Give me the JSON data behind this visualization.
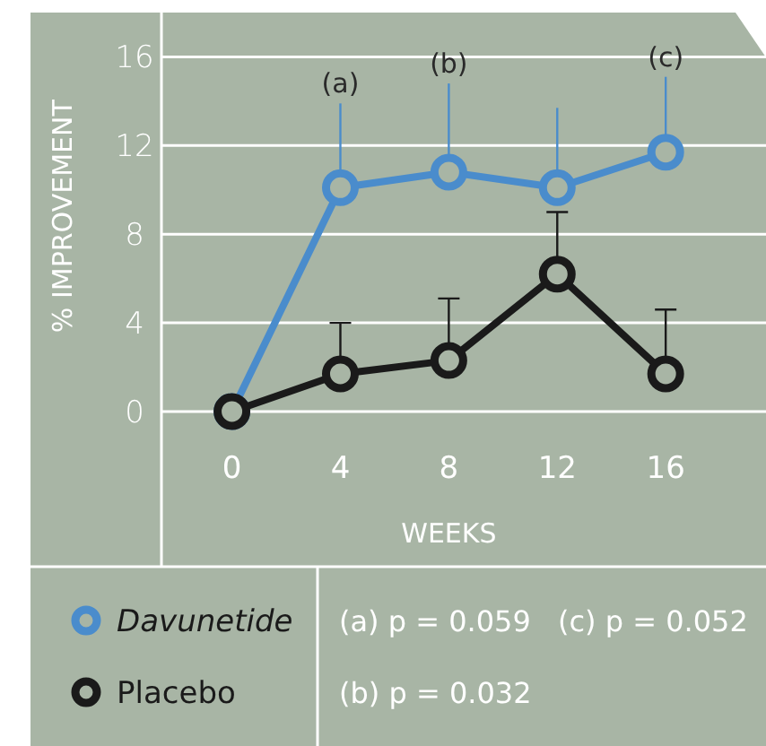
{
  "chart_data": {
    "type": "line",
    "xlabel": "WEEKS",
    "ylabel": "% IMPROVEMENT",
    "x": [
      0,
      4,
      8,
      12,
      16
    ],
    "xlim": [
      -2.6,
      19.7
    ],
    "ylim": [
      -7,
      18
    ],
    "xticks": [
      0,
      4,
      8,
      12,
      16
    ],
    "yticks": [
      0,
      4,
      8,
      12,
      16
    ],
    "grid": "y",
    "marker": "circle",
    "legend": "bottom",
    "series": [
      {
        "name": "Davunetide",
        "color": "#4a8ccc",
        "values": [
          0,
          10.1,
          10.8,
          10.1,
          11.7
        ],
        "errors": [
          null,
          [
            10.1,
            13.9
          ],
          [
            10.8,
            14.8
          ],
          [
            10.1,
            13.7
          ],
          [
            11.7,
            15.1
          ]
        ]
      },
      {
        "name": "Placebo",
        "color": "#1a1a1a",
        "values": [
          0,
          1.7,
          2.3,
          6.2,
          1.7
        ],
        "errors": [
          null,
          [
            1.7,
            4.0
          ],
          [
            2.3,
            5.1
          ],
          [
            6.2,
            9.0
          ],
          [
            1.7,
            4.6
          ]
        ]
      }
    ],
    "annotations": [
      "(a)",
      "(b)",
      "(c)",
      "(a) p = 0.059",
      "(c) p = 0.052",
      "(b) p = 0.032"
    ]
  }
}
